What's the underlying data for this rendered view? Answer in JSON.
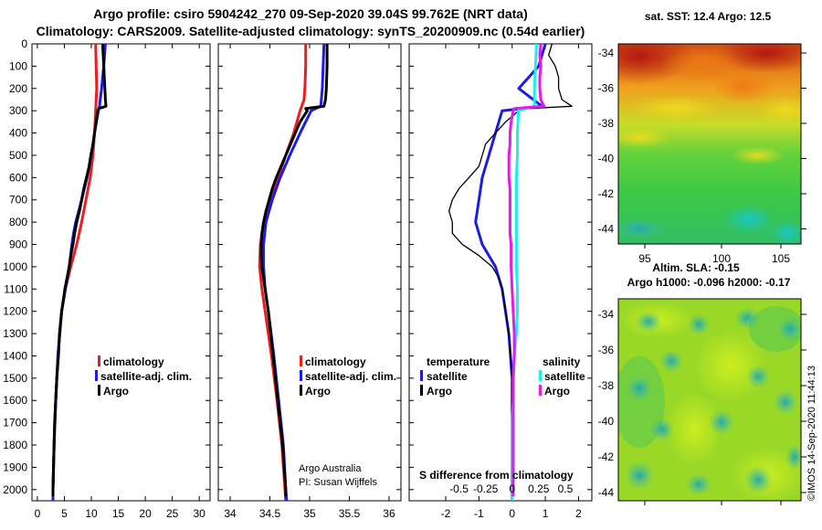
{
  "header": {
    "line1": "Argo profile: csiro 5904242_270 09-Sep-2020 39.04S 99.762E (NRT data)",
    "line2": "Climatology: CARS2009. Satellite-adjusted climatology: synTS_20200909.nc (0.54d earlier)"
  },
  "depth_ticks": [
    "0",
    "100",
    "200",
    "300",
    "400",
    "500",
    "600",
    "700",
    "800",
    "900",
    "1000",
    "1100",
    "1200",
    "1300",
    "1400",
    "1500",
    "1600",
    "1700",
    "1800",
    "1900",
    "2000"
  ],
  "colors": {
    "climatology": "#ee1c1c",
    "satellite": "#1c1ce6",
    "argo": "#000000",
    "sal_satellite": "#19f0f0",
    "sal_argo": "#e619e6"
  },
  "chart_data": [
    {
      "type": "line",
      "name": "temperature-profile",
      "xlabel": "",
      "ylabel": "depth",
      "xlim": [
        -1,
        32
      ],
      "ylim": [
        2050,
        0
      ],
      "x_ticks": [
        "0",
        "5",
        "10",
        "15",
        "20",
        "25",
        "30"
      ],
      "x_tick_values": [
        0,
        5,
        10,
        15,
        20,
        25,
        30
      ],
      "legend": {
        "climatology": "climatology",
        "satellite": "satellite-adj. clim.",
        "argo": "Argo"
      },
      "series": [
        {
          "name": "climatology",
          "color_key": "climatology",
          "depth": [
            0,
            100,
            200,
            300,
            400,
            500,
            600,
            700,
            800,
            900,
            1000,
            1100,
            1200,
            1400,
            1600,
            1800,
            2000,
            2050
          ],
          "values": [
            10.8,
            10.9,
            11.0,
            10.8,
            10.6,
            10.3,
            9.8,
            9.0,
            8.2,
            7.3,
            6.2,
            5.2,
            4.5,
            3.8,
            3.4,
            3.1,
            2.9,
            2.9
          ]
        },
        {
          "name": "satellite",
          "color_key": "satellite",
          "depth": [
            0,
            100,
            200,
            280,
            300,
            400,
            500,
            600,
            700,
            800,
            850,
            900,
            1000,
            1100,
            1200,
            1400,
            1600,
            1800,
            2000,
            2050
          ],
          "values": [
            12.6,
            12.3,
            11.9,
            11.5,
            11.3,
            10.6,
            10.0,
            9.2,
            8.2,
            7.1,
            6.7,
            6.4,
            5.9,
            5.2,
            4.5,
            3.8,
            3.4,
            3.1,
            2.9,
            2.9
          ]
        },
        {
          "name": "argo",
          "color_key": "argo",
          "depth": [
            0,
            50,
            100,
            150,
            200,
            250,
            280,
            290,
            300,
            350,
            400,
            450,
            500,
            550,
            600,
            650,
            700,
            750,
            800,
            850,
            900,
            950,
            1000,
            1050,
            1100,
            1150,
            1200,
            1300,
            1400,
            1500,
            1600,
            1700,
            1800,
            1900,
            2000,
            2030
          ],
          "values": [
            12.1,
            12.2,
            12.3,
            12.4,
            12.5,
            12.6,
            12.7,
            11.4,
            11.2,
            10.9,
            10.6,
            10.3,
            9.9,
            9.6,
            9.1,
            8.6,
            8.2,
            7.8,
            7.3,
            6.9,
            6.6,
            6.2,
            5.9,
            5.5,
            5.1,
            4.8,
            4.5,
            4.1,
            3.9,
            3.6,
            3.4,
            3.2,
            3.1,
            3.0,
            2.9,
            2.9
          ]
        }
      ]
    },
    {
      "type": "line",
      "name": "salinity-profile",
      "xlabel": "",
      "ylabel": "depth",
      "xlim": [
        33.85,
        36.15
      ],
      "ylim": [
        2050,
        0
      ],
      "x_ticks": [
        "34",
        "34.5",
        "35",
        "35.5",
        "36"
      ],
      "x_tick_values": [
        34,
        34.5,
        35,
        35.5,
        36
      ],
      "legend": {
        "climatology": "climatology",
        "satellite": "satellite-adj. clim.",
        "argo": "Argo"
      },
      "annotation": [
        "Argo Australia",
        "PI: Susan Wijffels"
      ],
      "series": [
        {
          "name": "climatology",
          "color_key": "climatology",
          "depth": [
            0,
            100,
            200,
            250,
            300,
            400,
            500,
            600,
            700,
            800,
            900,
            1000,
            1100,
            1200,
            1400,
            1600,
            1800,
            2000,
            2050
          ],
          "values": [
            34.95,
            34.95,
            34.94,
            34.93,
            34.88,
            34.8,
            34.7,
            34.6,
            34.5,
            34.42,
            34.38,
            34.37,
            34.4,
            34.44,
            34.52,
            34.59,
            34.65,
            34.69,
            34.7
          ]
        },
        {
          "name": "satellite",
          "color_key": "satellite",
          "depth": [
            0,
            100,
            200,
            280,
            300,
            400,
            500,
            600,
            700,
            800,
            900,
            1000,
            1100,
            1200,
            1400,
            1600,
            1800,
            2000,
            2050
          ],
          "values": [
            35.18,
            35.17,
            35.16,
            35.14,
            35.02,
            34.88,
            34.75,
            34.63,
            34.53,
            34.45,
            34.42,
            34.42,
            34.44,
            34.48,
            34.55,
            34.61,
            34.67,
            34.7,
            34.71
          ]
        },
        {
          "name": "argo",
          "color_key": "argo",
          "depth": [
            0,
            100,
            200,
            250,
            280,
            290,
            300,
            350,
            400,
            450,
            500,
            550,
            600,
            650,
            700,
            750,
            800,
            850,
            900,
            950,
            1000,
            1100,
            1200,
            1300,
            1400,
            1500,
            1600,
            1700,
            1800,
            1900,
            2000,
            2030
          ],
          "values": [
            35.22,
            35.22,
            35.21,
            35.2,
            35.18,
            34.95,
            34.97,
            34.88,
            34.82,
            34.76,
            34.7,
            34.64,
            34.58,
            34.53,
            34.49,
            34.45,
            34.42,
            34.4,
            34.39,
            34.39,
            34.4,
            34.44,
            34.48,
            34.51,
            34.54,
            34.57,
            34.6,
            34.63,
            34.66,
            34.68,
            34.7,
            34.7
          ]
        }
      ]
    },
    {
      "type": "line",
      "name": "difference-profile",
      "xlabel": "S difference from climatology",
      "ylabel": "depth",
      "xlim": [
        -3.1,
        2.4
      ],
      "ylim": [
        2050,
        0
      ],
      "x_ticks": [
        "-2",
        "-1",
        "0",
        "1",
        "2"
      ],
      "x_tick_values": [
        -2,
        -1,
        0,
        1,
        2
      ],
      "salinity_ticks": [
        "-0.5",
        "-0.25",
        "0",
        "0.25",
        "0.5"
      ],
      "salinity_tick_values": [
        -0.5,
        -0.25,
        0,
        0.25,
        0.5
      ],
      "legend": {
        "temperature": "temperature",
        "salinity": "salinity",
        "satellite": "satellite",
        "argo": "Argo"
      },
      "series": [
        {
          "name": "temperature-satellite",
          "color_key": "satellite",
          "depth": [
            0,
            100,
            200,
            280,
            300,
            400,
            500,
            600,
            700,
            800,
            900,
            1000,
            1100,
            1200,
            1300,
            1400,
            1500,
            1600,
            1700,
            1800,
            1900,
            2000,
            2050
          ],
          "values": [
            1.0,
            0.8,
            0.2,
            0.9,
            -0.3,
            -0.5,
            -0.7,
            -0.9,
            -1.0,
            -1.1,
            -0.9,
            -0.5,
            -0.3,
            -0.2,
            -0.1,
            -0.05,
            0.0,
            0.0,
            0.0,
            0.0,
            0.0,
            0.0,
            0.0
          ]
        },
        {
          "name": "temperature-argo",
          "color_key": "argo",
          "depth": [
            0,
            50,
            100,
            150,
            200,
            250,
            280,
            290,
            300,
            350,
            400,
            450,
            500,
            550,
            600,
            650,
            700,
            750,
            800,
            850,
            900,
            950,
            1000,
            1050,
            1100,
            1200,
            1300,
            1400,
            1500,
            1600,
            1700,
            1800,
            1900,
            2000,
            2030
          ],
          "values": [
            1.2,
            1.1,
            1.3,
            1.4,
            1.4,
            1.5,
            1.8,
            0.5,
            0.2,
            -0.2,
            -0.5,
            -0.8,
            -0.9,
            -1.0,
            -1.3,
            -1.6,
            -1.8,
            -1.9,
            -1.8,
            -1.8,
            -1.5,
            -1.0,
            -0.6,
            -0.4,
            -0.3,
            -0.2,
            -0.1,
            -0.05,
            0.0,
            0.0,
            0.0,
            0.0,
            0.0,
            0.0,
            0.0
          ]
        },
        {
          "name": "salinity-satellite",
          "color_key": "sal_satellite",
          "depth": [
            0,
            100,
            200,
            280,
            300,
            400,
            500,
            600,
            700,
            800,
            900,
            1000,
            1100,
            1200,
            1300,
            1400,
            1500,
            1600,
            1700,
            1800,
            1900,
            2000,
            2050
          ],
          "values": [
            0.23,
            0.22,
            0.21,
            0.21,
            0.06,
            0.05,
            0.05,
            0.04,
            0.04,
            0.04,
            0.04,
            0.04,
            0.05,
            0.05,
            0.04,
            0.02,
            0.01,
            0.01,
            0.0,
            0.0,
            0.0,
            0.0,
            0.0
          ]
        },
        {
          "name": "salinity-argo",
          "color_key": "sal_argo",
          "depth": [
            0,
            50,
            100,
            150,
            200,
            250,
            280,
            290,
            300,
            350,
            400,
            450,
            500,
            550,
            600,
            650,
            700,
            750,
            800,
            850,
            900,
            950,
            1000,
            1100,
            1200,
            1300,
            1400,
            1500,
            1600,
            1700,
            1800,
            1900,
            2000,
            2030
          ],
          "values": [
            0.27,
            0.26,
            0.27,
            0.26,
            0.26,
            0.27,
            0.3,
            0.02,
            0.01,
            -0.01,
            -0.02,
            -0.02,
            -0.03,
            -0.03,
            -0.03,
            -0.02,
            -0.02,
            -0.02,
            -0.02,
            -0.02,
            -0.01,
            -0.01,
            -0.01,
            0.0,
            0.01,
            0.02,
            0.02,
            0.01,
            0.01,
            0.01,
            0.01,
            0.01,
            0.01,
            0.01
          ]
        }
      ]
    }
  ],
  "map_top": {
    "title": "sat. SST: 12.4 Argo: 12.5",
    "y_ticks": [
      "-34",
      "-36",
      "-38",
      "-40",
      "-42",
      "-44"
    ],
    "x_ticks": [
      "95",
      "100",
      "105"
    ]
  },
  "map_bottom": {
    "title1": "Altim. SLA: -0.15",
    "title2": "Argo h1000: -0.096 h2000: -0.17",
    "y_ticks": [
      "-34",
      "-36",
      "-38",
      "-40",
      "-42",
      "-44"
    ]
  },
  "credit": "©IMOS 14-Sep-2020 11:44:13"
}
